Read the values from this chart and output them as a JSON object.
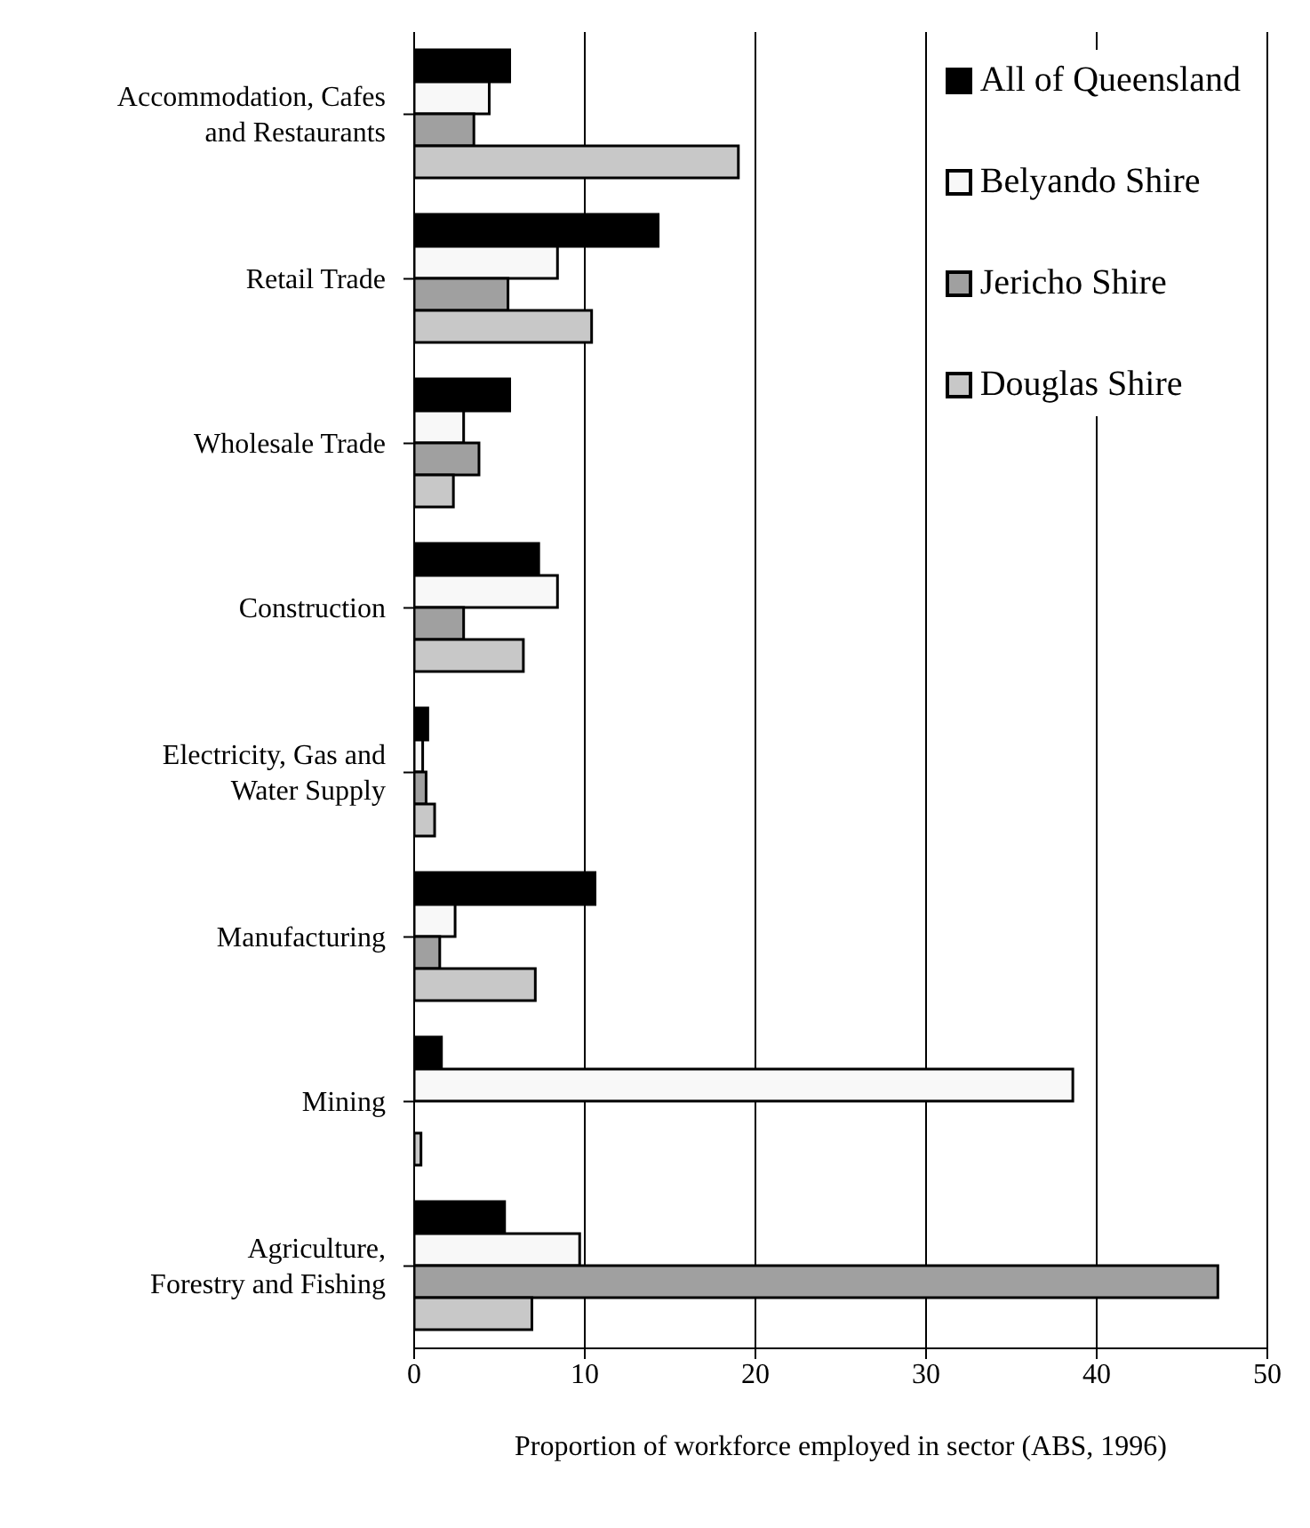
{
  "chart_data": {
    "type": "bar",
    "orientation": "horizontal",
    "xlabel": "Proportion of workforce employed in sector (ABS, 1996)",
    "categories": [
      "Accommodation, Cafes and Restaurants",
      "Retail Trade",
      "Wholesale Trade",
      "Construction",
      "Electricity, Gas and Water Supply",
      "Manufacturing",
      "Mining",
      "Agriculture, Forestry and Fishing"
    ],
    "series": [
      {
        "name": "All of Queensland",
        "color": "#000000",
        "values": [
          5.6,
          14.3,
          5.6,
          7.3,
          0.8,
          10.6,
          1.6,
          5.3
        ]
      },
      {
        "name": "Belyando Shire",
        "color": "#f8f8f8",
        "values": [
          4.4,
          8.4,
          2.9,
          8.4,
          0.5,
          2.4,
          38.6,
          9.7
        ]
      },
      {
        "name": "Jericho Shire",
        "color": "#a0a0a0",
        "values": [
          3.5,
          5.5,
          3.8,
          2.9,
          0.7,
          1.5,
          0,
          47.1
        ]
      },
      {
        "name": "Douglas Shire",
        "color": "#c8c8c8",
        "values": [
          19.0,
          10.4,
          2.3,
          6.4,
          1.2,
          7.1,
          0.4,
          6.9
        ]
      }
    ],
    "xlim": [
      0,
      50
    ],
    "xticks": [
      0,
      10,
      20,
      30,
      40,
      50
    ],
    "grid": "x",
    "legend": "top right"
  }
}
